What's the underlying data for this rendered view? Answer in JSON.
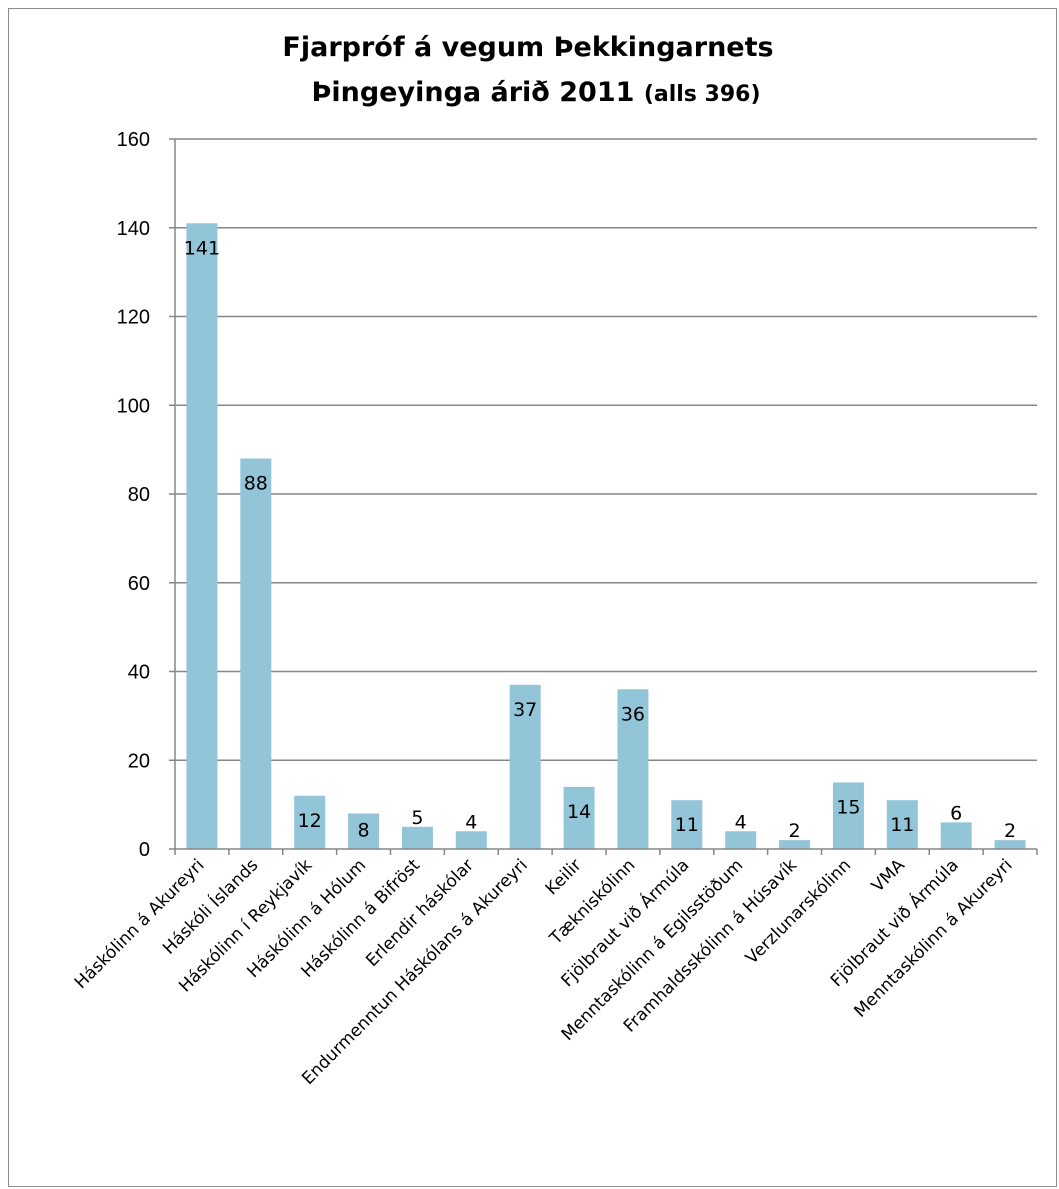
{
  "chart_data": {
    "type": "bar",
    "title_line1": "Fjarpróf á vegum Þekkingarnets",
    "title_line2_main": "Þingeyinga árið 2011 ",
    "title_line2_small": "(alls 396)",
    "categories": [
      "Háskólinn á Akureyri",
      "Háskóli Íslands",
      "Háskólinn í Reykjavík",
      "Háskólinn á Hólum",
      "Háskólinn á Bifröst",
      "Erlendir háskólar",
      "Endurmenntun Háskólans á Akureyri",
      "Keilir",
      "Tækniskólinn",
      "Fjölbraut við Ármúla",
      "Menntaskólinn á Egilsstöðum",
      "Framhaldsskólinn á Húsavík",
      "Verzlunarskólinn",
      "VMA",
      "Fjölbraut við Ármúla",
      "Menntaskólinn á Akureyri"
    ],
    "values": [
      141,
      88,
      12,
      8,
      5,
      4,
      37,
      14,
      36,
      11,
      4,
      2,
      15,
      11,
      6,
      2
    ],
    "ylim": [
      0,
      160
    ],
    "yticks": [
      "0",
      "20",
      "40",
      "60",
      "80",
      "100",
      "120",
      "140",
      "160"
    ],
    "grid": true,
    "bar_color": "#92c5d8",
    "grid_color": "#868686"
  }
}
